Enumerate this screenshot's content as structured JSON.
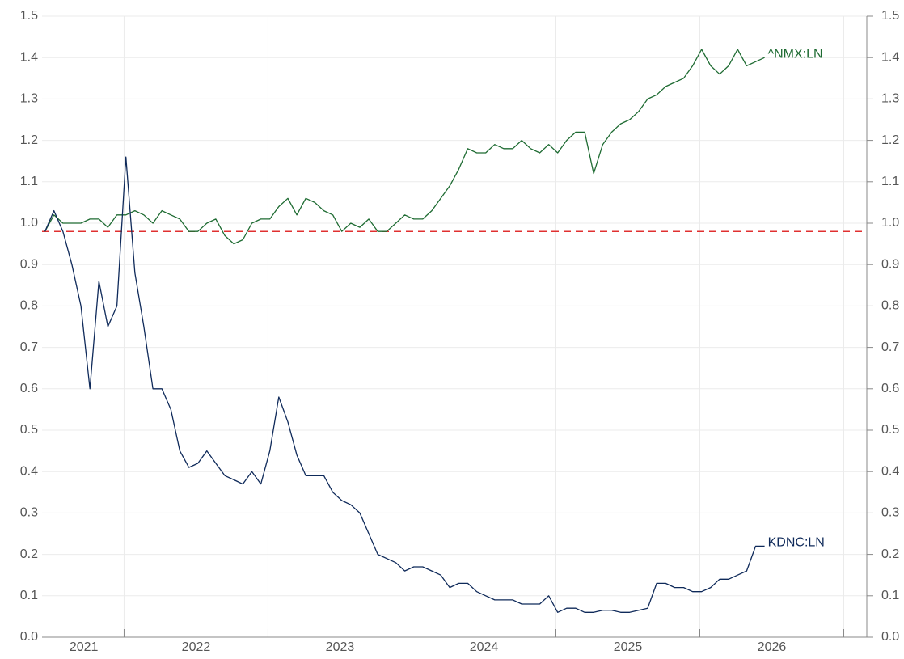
{
  "chart_data": {
    "type": "line",
    "x": [
      2021.45,
      2021.5125,
      2021.575,
      2021.6375,
      2021.7,
      2021.7625,
      2021.825,
      2021.8875,
      2021.95,
      2022.0125,
      2022.075,
      2022.1375,
      2022.2,
      2022.2625,
      2022.325,
      2022.3875,
      2022.45,
      2022.5125,
      2022.575,
      2022.6375,
      2022.7,
      2022.7625,
      2022.825,
      2022.8875,
      2022.95,
      2023.0125,
      2023.075,
      2023.1375,
      2023.2,
      2023.2625,
      2023.325,
      2023.3875,
      2023.45,
      2023.5125,
      2023.575,
      2023.6375,
      2023.7,
      2023.7625,
      2023.825,
      2023.8875,
      2023.95,
      2024.0125,
      2024.075,
      2024.1375,
      2024.2,
      2024.2625,
      2024.325,
      2024.3875,
      2024.45,
      2024.5125,
      2024.575,
      2024.6375,
      2024.7,
      2024.7625,
      2024.825,
      2024.8875,
      2024.95,
      2025.0125,
      2025.075,
      2025.1375,
      2025.2,
      2025.2625,
      2025.325,
      2025.3875,
      2025.45,
      2025.5125,
      2025.575,
      2025.6375,
      2025.7,
      2025.7625,
      2025.825,
      2025.8875,
      2025.95,
      2026.0125,
      2026.075,
      2026.1375,
      2026.2,
      2026.2625,
      2026.325,
      2026.3875,
      2026.45
    ],
    "series": [
      {
        "name": "^NMX:LN",
        "color": "#1e6b32",
        "values": [
          0.98,
          1.02,
          1.0,
          1.0,
          1.0,
          1.01,
          1.01,
          0.99,
          1.02,
          1.02,
          1.03,
          1.02,
          1.0,
          1.03,
          1.02,
          1.01,
          0.98,
          0.98,
          1.0,
          1.01,
          0.97,
          0.95,
          0.96,
          1.0,
          1.01,
          1.01,
          1.04,
          1.06,
          1.02,
          1.06,
          1.05,
          1.03,
          1.02,
          0.98,
          1.0,
          0.99,
          1.01,
          0.98,
          0.98,
          1.0,
          1.02,
          1.01,
          1.01,
          1.03,
          1.06,
          1.09,
          1.13,
          1.18,
          1.17,
          1.17,
          1.19,
          1.18,
          1.18,
          1.2,
          1.18,
          1.17,
          1.19,
          1.17,
          1.2,
          1.22,
          1.22,
          1.12,
          1.19,
          1.22,
          1.24,
          1.25,
          1.27,
          1.3,
          1.31,
          1.33,
          1.34,
          1.35,
          1.38,
          1.42,
          1.38,
          1.36,
          1.38,
          1.42,
          1.38,
          1.39,
          1.4
        ]
      },
      {
        "name": "KDNC:LN",
        "color": "#0f2a5a",
        "values": [
          0.98,
          1.03,
          0.98,
          0.9,
          0.8,
          0.6,
          0.86,
          0.75,
          0.8,
          1.16,
          0.88,
          0.75,
          0.6,
          0.6,
          0.55,
          0.45,
          0.41,
          0.42,
          0.45,
          0.42,
          0.39,
          0.38,
          0.37,
          0.4,
          0.37,
          0.45,
          0.58,
          0.52,
          0.44,
          0.39,
          0.39,
          0.39,
          0.35,
          0.33,
          0.32,
          0.3,
          0.25,
          0.2,
          0.19,
          0.18,
          0.16,
          0.17,
          0.17,
          0.16,
          0.15,
          0.12,
          0.13,
          0.13,
          0.11,
          0.1,
          0.09,
          0.09,
          0.09,
          0.08,
          0.08,
          0.08,
          0.1,
          0.06,
          0.07,
          0.07,
          0.06,
          0.06,
          0.065,
          0.065,
          0.06,
          0.06,
          0.065,
          0.07,
          0.13,
          0.13,
          0.12,
          0.12,
          0.11,
          0.11,
          0.12,
          0.14,
          0.14,
          0.15,
          0.16,
          0.22,
          0.22
        ]
      }
    ],
    "reference_line": {
      "value": 0.98,
      "color": "#e03030",
      "dashed": true
    },
    "xlim": [
      2021.43,
      2027.16
    ],
    "xticks": [
      2022,
      2023,
      2024,
      2025,
      2026,
      2027
    ],
    "xtick_labels": [
      {
        "value": 2021.72,
        "label": "2021"
      },
      {
        "value": 2022.5,
        "label": "2022"
      },
      {
        "value": 2023.5,
        "label": "2023"
      },
      {
        "value": 2024.5,
        "label": "2024"
      },
      {
        "value": 2025.5,
        "label": "2025"
      },
      {
        "value": 2026.5,
        "label": "2026"
      }
    ],
    "ylim": [
      0,
      1.5
    ],
    "yticks": [
      {
        "value": 0,
        "label": "0.0"
      },
      0.1,
      0.2,
      0.3,
      0.4,
      0.5,
      0.6,
      0.7,
      0.8,
      0.9,
      {
        "value": 1,
        "label": "1.0"
      },
      1.1,
      1.2,
      1.3,
      1.4,
      {
        "value": 1.5,
        "label": "1.5"
      }
    ],
    "y2lim": [
      0,
      1.5
    ],
    "y2ticks": [
      {
        "value": 0,
        "label": "0.0"
      },
      0.1,
      0.2,
      0.3,
      0.4,
      0.5,
      0.6,
      0.7,
      0.8,
      0.9,
      {
        "value": 1,
        "label": "1.0"
      },
      1.1,
      1.2,
      1.3,
      1.4,
      {
        "value": 1.5,
        "label": "1.5"
      }
    ],
    "grid": true
  }
}
